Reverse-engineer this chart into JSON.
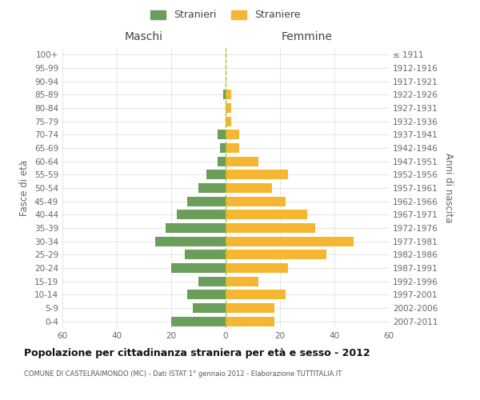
{
  "age_groups": [
    "0-4",
    "5-9",
    "10-14",
    "15-19",
    "20-24",
    "25-29",
    "30-34",
    "35-39",
    "40-44",
    "45-49",
    "50-54",
    "55-59",
    "60-64",
    "65-69",
    "70-74",
    "75-79",
    "80-84",
    "85-89",
    "90-94",
    "95-99",
    "100+"
  ],
  "birth_years": [
    "2007-2011",
    "2002-2006",
    "1997-2001",
    "1992-1996",
    "1987-1991",
    "1982-1986",
    "1977-1981",
    "1972-1976",
    "1967-1971",
    "1962-1966",
    "1957-1961",
    "1952-1956",
    "1947-1951",
    "1942-1946",
    "1937-1941",
    "1932-1936",
    "1927-1931",
    "1922-1926",
    "1917-1921",
    "1912-1916",
    "≤ 1911"
  ],
  "maschi": [
    20,
    12,
    14,
    10,
    20,
    15,
    26,
    22,
    18,
    14,
    10,
    7,
    3,
    2,
    3,
    0,
    0,
    1,
    0,
    0,
    0
  ],
  "femmine": [
    18,
    18,
    22,
    12,
    23,
    37,
    47,
    33,
    30,
    22,
    17,
    23,
    12,
    5,
    5,
    2,
    2,
    2,
    0,
    0,
    0
  ],
  "maschi_color": "#6a9e5a",
  "femmine_color": "#f5b731",
  "background_color": "#ffffff",
  "grid_color": "#cccccc",
  "title": "Popolazione per cittadinanza straniera per età e sesso - 2012",
  "subtitle": "COMUNE DI CASTELRAIMONDO (MC) - Dati ISTAT 1° gennaio 2012 - Elaborazione TUTTITALIA.IT",
  "ylabel_left": "Fasce di età",
  "ylabel_right": "Anni di nascita",
  "legend_maschi": "Stranieri",
  "legend_femmine": "Straniere",
  "xlim": 60,
  "maschi_header": "Maschi",
  "femmine_header": "Femmine",
  "center_line_color": "#aabb33",
  "center_line_style": "--"
}
